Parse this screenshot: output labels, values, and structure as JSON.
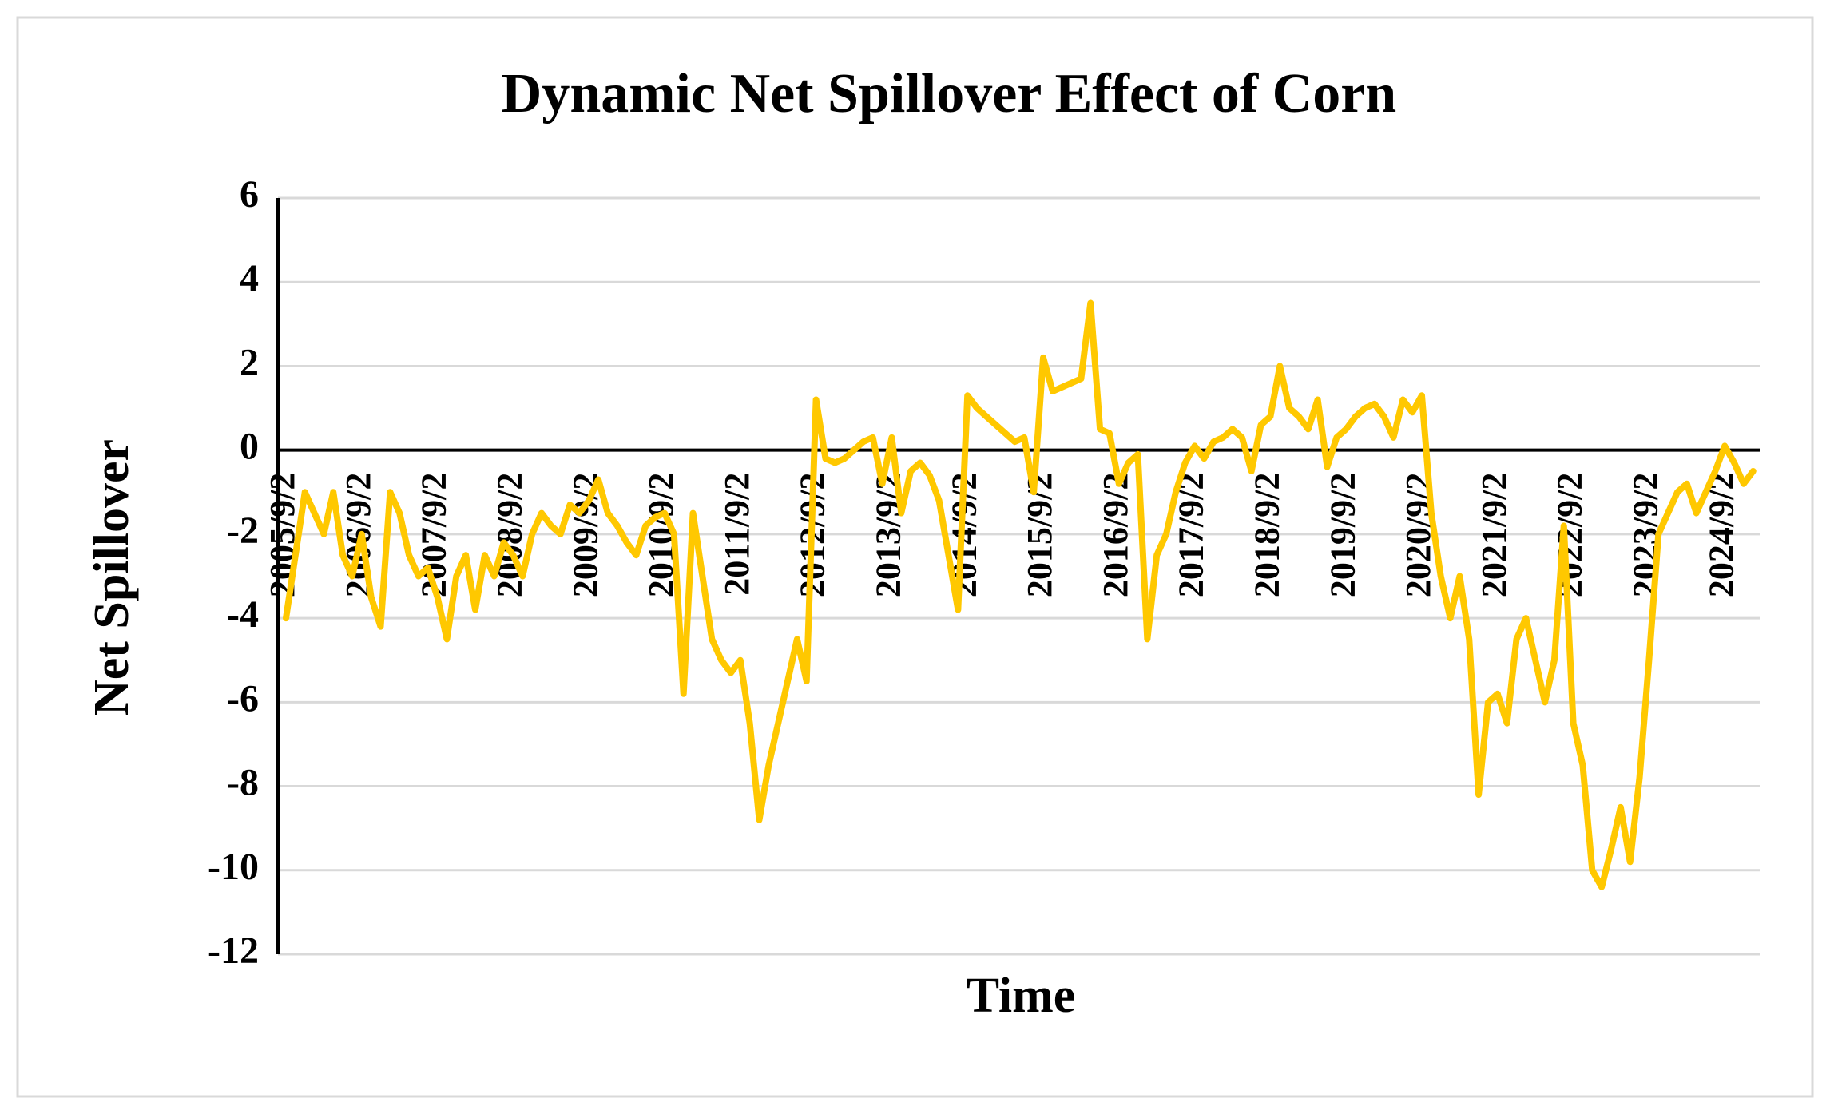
{
  "chart_data": {
    "type": "line",
    "title": "Dynamic Net Spillover Effect of Corn",
    "x_label": "Time",
    "y_label": "Net  Spillover",
    "color": "#ffc800",
    "grid": true,
    "ylim": [
      -12,
      6
    ],
    "yticks": [
      -12,
      -10,
      -8,
      -6,
      -4,
      -2,
      0,
      2,
      4,
      6
    ],
    "categories": [
      "2005/9/2",
      null,
      null,
      null,
      null,
      null,
      null,
      null,
      "2006/9/2",
      null,
      null,
      null,
      null,
      null,
      null,
      null,
      "2007/9/2",
      null,
      null,
      null,
      null,
      null,
      null,
      null,
      "2008/9/2",
      null,
      null,
      null,
      null,
      null,
      null,
      null,
      "2009/9/2",
      null,
      null,
      null,
      null,
      null,
      null,
      null,
      "2010/9/2",
      null,
      null,
      null,
      null,
      null,
      null,
      null,
      "2011/9/2",
      null,
      null,
      null,
      null,
      null,
      null,
      null,
      "2012/9/2",
      null,
      null,
      null,
      null,
      null,
      null,
      null,
      "2013/9/2",
      null,
      null,
      null,
      null,
      null,
      null,
      null,
      "2014/9/2",
      null,
      null,
      null,
      null,
      null,
      null,
      null,
      "2015/9/2",
      null,
      null,
      null,
      null,
      null,
      null,
      null,
      "2016/9/2",
      null,
      null,
      null,
      null,
      null,
      null,
      null,
      "2017/9/2",
      null,
      null,
      null,
      null,
      null,
      null,
      null,
      "2018/9/2",
      null,
      null,
      null,
      null,
      null,
      null,
      null,
      "2019/9/2",
      null,
      null,
      null,
      null,
      null,
      null,
      null,
      "2020/9/2",
      null,
      null,
      null,
      null,
      null,
      null,
      null,
      "2021/9/2",
      null,
      null,
      null,
      null,
      null,
      null,
      null,
      "2022/9/2",
      null,
      null,
      null,
      null,
      null,
      null,
      null,
      "2023/9/2",
      null,
      null,
      null,
      null,
      null,
      null,
      null,
      "2024/9/2",
      null,
      null,
      null
    ],
    "values": [
      -4,
      -2.5,
      -1,
      -1.5,
      -2,
      -1,
      -2.5,
      -3,
      -2,
      -3.5,
      -4.2,
      -1,
      -1.5,
      -2.5,
      -3,
      -2.8,
      -3.5,
      -4.5,
      -3,
      -2.5,
      -3.8,
      -2.5,
      -3,
      -2.2,
      -2.5,
      -3,
      -2,
      -1.5,
      -1.8,
      -2,
      -1.3,
      -1.5,
      -1.2,
      -0.7,
      -1.5,
      -1.8,
      -2.2,
      -2.5,
      -1.8,
      -1.6,
      -1.5,
      -2,
      -5.8,
      -1.5,
      -3,
      -4.5,
      -5,
      -5.3,
      -5,
      -6.5,
      -8.8,
      -7.5,
      -6.5,
      -5.5,
      -4.5,
      -5.5,
      1.2,
      -0.2,
      -0.3,
      -0.2,
      0,
      0.2,
      0.3,
      -0.8,
      0.3,
      -1.5,
      -0.5,
      -0.3,
      -0.6,
      -1.2,
      -2.5,
      -3.8,
      1.3,
      1,
      0.8,
      0.6,
      0.4,
      0.2,
      0.3,
      -1,
      2.2,
      1.4,
      1.5,
      1.6,
      1.7,
      3.5,
      0.5,
      0.4,
      -0.8,
      -0.3,
      -0.1,
      -4.5,
      -2.5,
      -2,
      -1,
      -0.3,
      0.1,
      -0.2,
      0.2,
      0.3,
      0.5,
      0.3,
      -0.5,
      0.6,
      0.8,
      2,
      1,
      0.8,
      0.5,
      1.2,
      -0.4,
      0.3,
      0.5,
      0.8,
      1,
      1.1,
      0.8,
      0.3,
      1.2,
      0.9,
      1.3,
      -1.5,
      -3,
      -4,
      -3,
      -4.5,
      -8.2,
      -6,
      -5.8,
      -6.5,
      -4.5,
      -4,
      -5,
      -6,
      -5,
      -1.8,
      -6.5,
      -7.5,
      -10,
      -10.4,
      -9.5,
      -8.5,
      -9.8,
      -7.8,
      -5,
      -2,
      -1.5,
      -1,
      -0.8,
      -1.5,
      -1,
      -0.5,
      0.1,
      -0.3,
      -0.8,
      -0.5
    ]
  }
}
